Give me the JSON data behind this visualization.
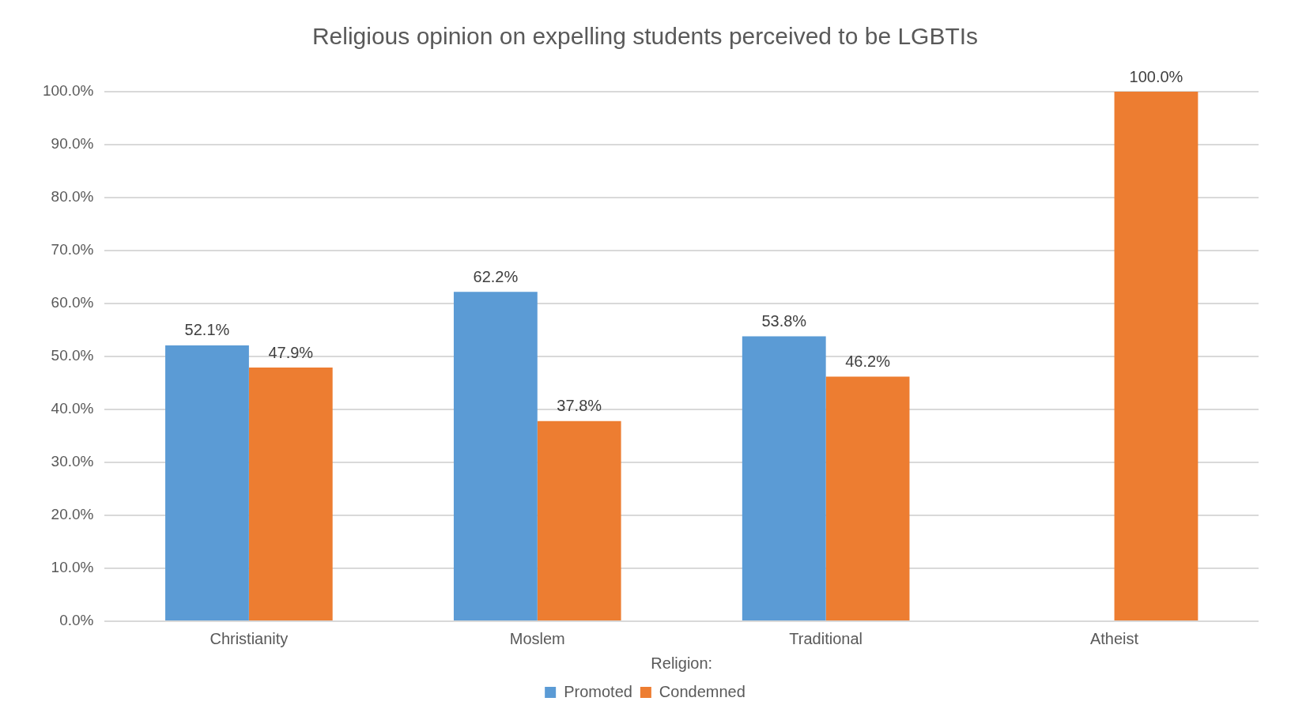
{
  "chart_data": {
    "type": "bar",
    "title": "Religious opinion on expelling students perceived to be LGBTIs",
    "xlabel": "Religion:",
    "categories": [
      "Christianity",
      "Moslem",
      "Traditional",
      "Atheist"
    ],
    "series": [
      {
        "name": "Promoted",
        "color": "#5b9bd5",
        "values": [
          52.1,
          62.2,
          53.8,
          null
        ],
        "value_labels": [
          "52.1%",
          "62.2%",
          "53.8%",
          null
        ]
      },
      {
        "name": "Condemned",
        "color": "#ed7d31",
        "values": [
          47.9,
          37.8,
          46.2,
          100
        ],
        "value_labels": [
          "47.9%",
          "37.8%",
          "46.2%",
          "100.0%"
        ]
      }
    ],
    "ylim": [
      0,
      100
    ],
    "yticks": [
      {
        "value": 0,
        "label": "0.0%"
      },
      {
        "value": 10,
        "label": "10.0%"
      },
      {
        "value": 20,
        "label": "20.0%"
      },
      {
        "value": 30,
        "label": "30.0%"
      },
      {
        "value": 40,
        "label": "40.0%"
      },
      {
        "value": 50,
        "label": "50.0%"
      },
      {
        "value": 60,
        "label": "60.0%"
      },
      {
        "value": 70,
        "label": "70.0%"
      },
      {
        "value": 80,
        "label": "80.0%"
      },
      {
        "value": 90,
        "label": "90.0%"
      },
      {
        "value": 100,
        "label": "100.0%"
      }
    ],
    "grid": "y",
    "legend": "bottom"
  }
}
